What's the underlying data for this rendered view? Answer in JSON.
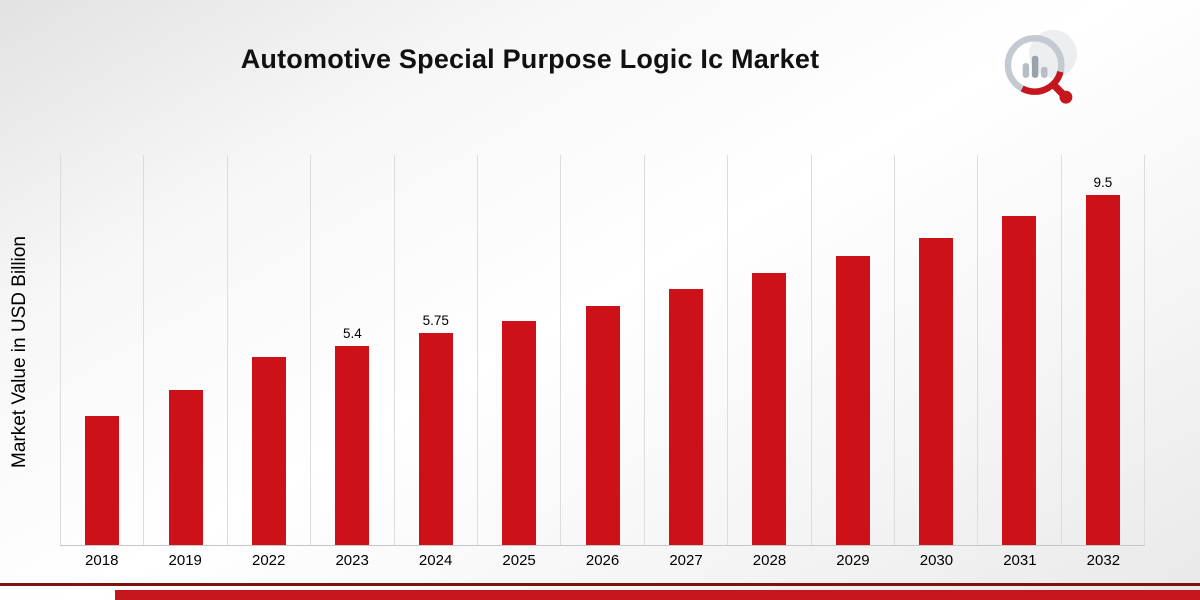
{
  "title": "Automotive Special Purpose Logic Ic Market",
  "ylabel": "Market Value in USD Billion",
  "chart_data": {
    "type": "bar",
    "categories": [
      "2018",
      "2019",
      "2022",
      "2023",
      "2024",
      "2025",
      "2026",
      "2027",
      "2028",
      "2029",
      "2030",
      "2031",
      "2032"
    ],
    "values": [
      3.5,
      4.2,
      5.1,
      5.4,
      5.75,
      6.1,
      6.5,
      6.95,
      7.4,
      7.85,
      8.35,
      8.95,
      9.5
    ],
    "point_labels": {
      "2023": "5.4",
      "2024": "5.75",
      "2032": "9.5"
    },
    "title": "Automotive Special Purpose Logic Ic Market",
    "xlabel": "",
    "ylabel": "Market Value in USD Billion",
    "ylim": [
      0,
      10.6
    ],
    "grid": "vertical",
    "legend": "none",
    "bar_color": "#cc1118"
  },
  "colors": {
    "bar": "#cc1118",
    "footer_line": "#7d120e",
    "footer_band": "#c4161c",
    "gridline": "#dcdcdc"
  },
  "logo": {
    "name": "brand-logo-bar-chart-magnifier"
  }
}
